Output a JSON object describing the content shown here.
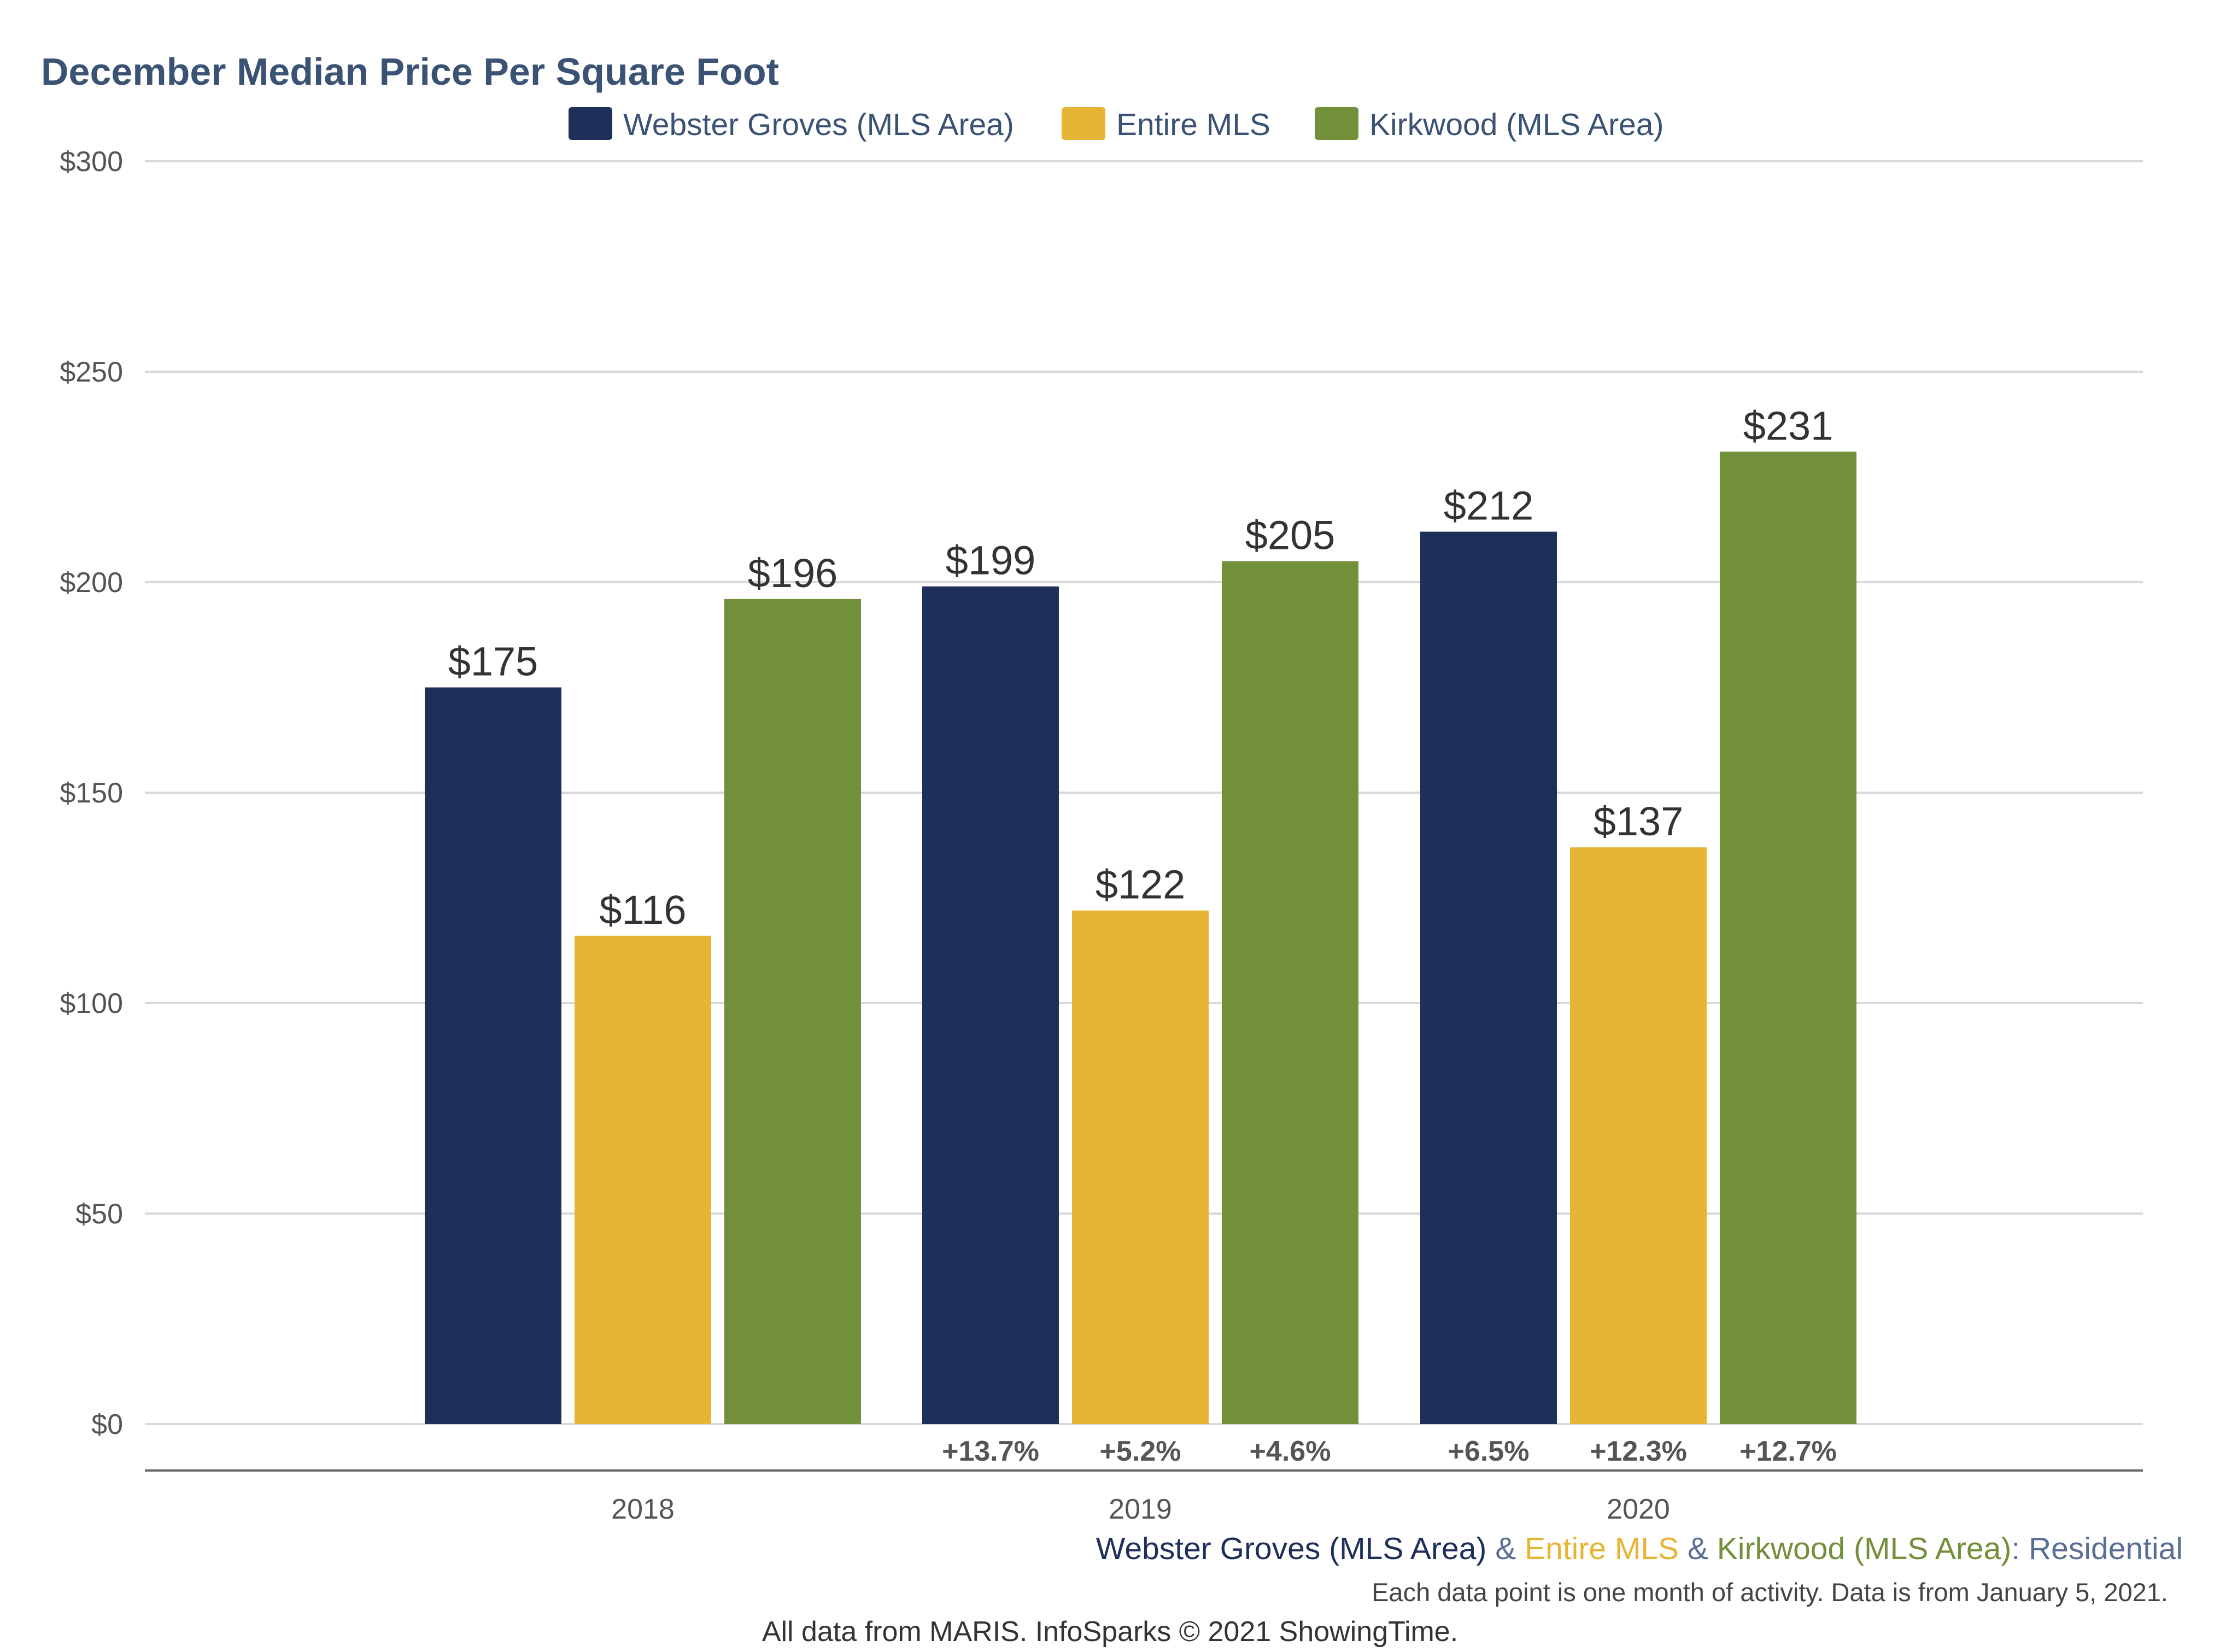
{
  "chart_data": {
    "type": "bar",
    "title": "December Median Price Per Square Foot",
    "categories": [
      "2018",
      "2019",
      "2020"
    ],
    "series": [
      {
        "name": "Webster Groves (MLS Area)",
        "color": "#1e2f5a",
        "values": [
          175,
          199,
          212
        ],
        "labels": [
          "$175",
          "$199",
          "$212"
        ],
        "changes": [
          "",
          "+13.7%",
          "+6.5%"
        ]
      },
      {
        "name": "Entire MLS",
        "color": "#e6b535",
        "values": [
          116,
          122,
          137
        ],
        "labels": [
          "$116",
          "$122",
          "$137"
        ],
        "changes": [
          "",
          "+5.2%",
          "+12.3%"
        ]
      },
      {
        "name": "Kirkwood (MLS Area)",
        "color": "#728f3a",
        "values": [
          196,
          205,
          231
        ],
        "labels": [
          "$196",
          "$205",
          "$231"
        ],
        "changes": [
          "",
          "+4.6%",
          "+12.7%"
        ]
      }
    ],
    "y_ticks": [
      "$0",
      "$50",
      "$100",
      "$150",
      "$200",
      "$250",
      "$300"
    ],
    "ylim": [
      0,
      300
    ],
    "grid": true,
    "legend_position": "top-center"
  },
  "footer": {
    "series_1": "Webster Groves (MLS Area)",
    "sep_1": " & ",
    "series_2": "Entire MLS",
    "sep_2": " & ",
    "series_3": "Kirkwood (MLS Area)",
    "colon": ": ",
    "segment": "Residential",
    "note": "Each data point is one month of activity. Data is from January 5, 2021.",
    "credit": "All data from MARIS. InfoSparks © 2021 ShowingTime."
  },
  "colors": {
    "footer_series_1": "#1e2f5a",
    "footer_series_2": "#e6b535",
    "footer_series_3": "#728f3a",
    "footer_sep": "#5a6f95",
    "footer_segment": "#5a6f95"
  }
}
